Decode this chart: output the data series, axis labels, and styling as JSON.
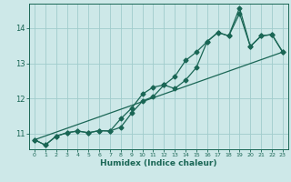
{
  "xlabel": "Humidex (Indice chaleur)",
  "bg_color": "#cde8e8",
  "grid_color": "#a0cccc",
  "line_color": "#1a6655",
  "xlim": [
    -0.5,
    23.5
  ],
  "ylim": [
    10.55,
    14.7
  ],
  "x": [
    0,
    1,
    2,
    3,
    4,
    5,
    6,
    7,
    8,
    9,
    10,
    11,
    12,
    13,
    14,
    15,
    16,
    17,
    18,
    19,
    20,
    21,
    22,
    23
  ],
  "line1": [
    10.82,
    10.67,
    10.92,
    11.02,
    11.07,
    11.02,
    11.08,
    11.07,
    11.42,
    11.72,
    12.12,
    12.32,
    12.38,
    12.62,
    13.08,
    13.32,
    13.62,
    13.88,
    13.78,
    14.58,
    13.48,
    13.78,
    13.82,
    13.32
  ],
  "line2": [
    10.82,
    10.67,
    10.92,
    11.02,
    11.07,
    11.02,
    11.08,
    11.07,
    11.18,
    11.58,
    11.92,
    12.05,
    12.38,
    12.28,
    12.52,
    12.88,
    13.62,
    13.88,
    13.78,
    14.42,
    13.48,
    13.78,
    13.82,
    13.32
  ],
  "line3_x": [
    0,
    23
  ],
  "line3_y": [
    10.82,
    13.32
  ],
  "yticks": [
    11,
    12,
    13,
    14
  ],
  "xticks": [
    0,
    1,
    2,
    3,
    4,
    5,
    6,
    7,
    8,
    9,
    10,
    11,
    12,
    13,
    14,
    15,
    16,
    17,
    18,
    19,
    20,
    21,
    22,
    23
  ],
  "marker": "D",
  "markersize": 2.5,
  "linewidth": 0.9
}
